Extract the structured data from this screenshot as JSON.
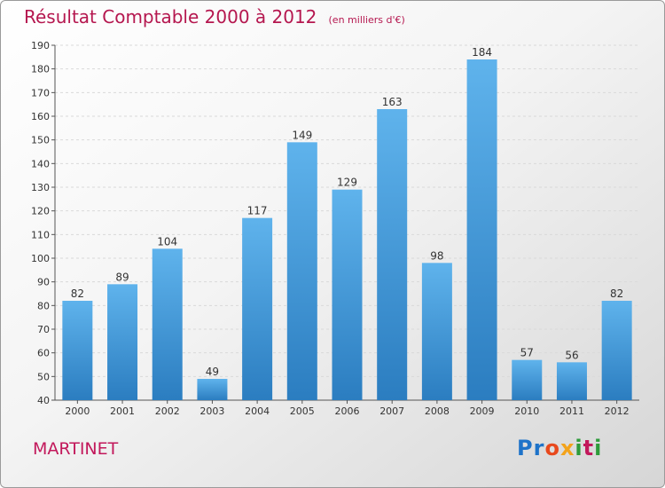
{
  "chart_data": {
    "type": "bar",
    "title": "Résultat Comptable 2000 à 2012",
    "subtitle": "(en milliers d'€)",
    "categories": [
      "2000",
      "2001",
      "2002",
      "2003",
      "2004",
      "2005",
      "2006",
      "2007",
      "2008",
      "2009",
      "2010",
      "2011",
      "2012"
    ],
    "values": [
      82,
      89,
      104,
      49,
      117,
      149,
      129,
      163,
      98,
      184,
      57,
      56,
      82
    ],
    "ylim": [
      40,
      190
    ],
    "yticks": [
      40,
      50,
      60,
      70,
      80,
      90,
      100,
      110,
      120,
      130,
      140,
      150,
      160,
      170,
      180,
      190
    ],
    "grid": true,
    "xlabel": "",
    "ylabel": ""
  },
  "footer": {
    "city": "MARTINET",
    "logo": "Proxiti"
  },
  "colors": {
    "bar_top": "#5fb3ec",
    "bar_bottom": "#2b7dc0",
    "title": "#b5174f",
    "city": "#c2185b"
  }
}
